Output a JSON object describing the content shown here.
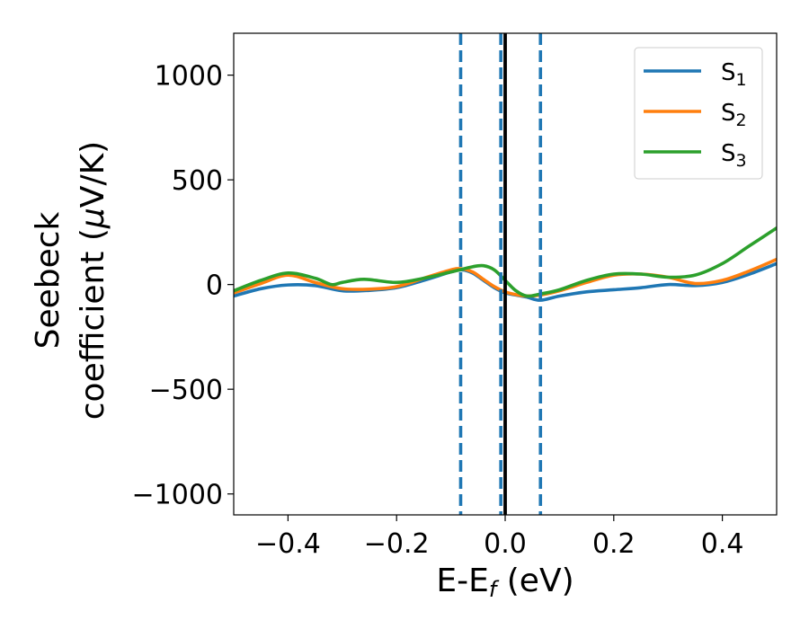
{
  "chart_data": {
    "type": "line",
    "xlabel_main": "E-E",
    "xlabel_sub": "f",
    "xlabel_unit": " (eV)",
    "ylabel_line1": "Seebeck",
    "ylabel_line2_text": "coefficient  (",
    "ylabel_line2_mu": "μ",
    "ylabel_line2_unit": "V/K)",
    "xlim": [
      -0.5,
      0.5
    ],
    "ylim": [
      -1100,
      1200
    ],
    "xticks": [
      -0.4,
      -0.2,
      0.0,
      0.2,
      0.4
    ],
    "xtick_labels": [
      "−0.4",
      "−0.2",
      "0.0",
      "0.2",
      "0.4"
    ],
    "yticks": [
      -1000,
      -500,
      0,
      500,
      1000
    ],
    "ytick_labels": [
      "−1000",
      "−500",
      "0",
      "500",
      "1000"
    ],
    "legend_position": "top-right",
    "series": [
      {
        "name_main": "S",
        "name_sub": "1",
        "color": "#1f77b4",
        "x": [
          -0.5,
          -0.45,
          -0.4,
          -0.35,
          -0.3,
          -0.25,
          -0.2,
          -0.15,
          -0.1,
          -0.08,
          -0.06,
          -0.04,
          -0.02,
          0.0,
          0.02,
          0.04,
          0.065,
          0.1,
          0.15,
          0.2,
          0.25,
          0.3,
          0.35,
          0.4,
          0.45,
          0.5
        ],
        "y": [
          -55,
          -20,
          -2,
          -5,
          -30,
          -28,
          -15,
          20,
          60,
          70,
          55,
          20,
          -15,
          -40,
          -50,
          -60,
          -75,
          -55,
          -35,
          -25,
          -15,
          0,
          -5,
          10,
          50,
          100
        ]
      },
      {
        "name_main": "S",
        "name_sub": "2",
        "color": "#ff7f0e",
        "x": [
          -0.5,
          -0.45,
          -0.4,
          -0.35,
          -0.3,
          -0.25,
          -0.2,
          -0.15,
          -0.1,
          -0.08,
          -0.06,
          -0.04,
          -0.02,
          0.0,
          0.02,
          0.04,
          0.065,
          0.1,
          0.15,
          0.2,
          0.25,
          0.3,
          0.35,
          0.4,
          0.45,
          0.5
        ],
        "y": [
          -40,
          5,
          45,
          10,
          -20,
          -22,
          -10,
          30,
          70,
          75,
          60,
          25,
          -10,
          -35,
          -48,
          -55,
          -50,
          -30,
          10,
          45,
          50,
          35,
          5,
          20,
          65,
          120
        ]
      },
      {
        "name_main": "S",
        "name_sub": "3",
        "color": "#2ca02c",
        "x": [
          -0.5,
          -0.45,
          -0.4,
          -0.35,
          -0.32,
          -0.3,
          -0.26,
          -0.2,
          -0.15,
          -0.1,
          -0.06,
          -0.04,
          -0.02,
          0.0,
          0.02,
          0.04,
          0.065,
          0.1,
          0.15,
          0.2,
          0.25,
          0.3,
          0.35,
          0.4,
          0.45,
          0.5
        ],
        "y": [
          -30,
          20,
          55,
          30,
          0,
          10,
          25,
          10,
          30,
          60,
          85,
          90,
          70,
          20,
          -30,
          -55,
          -45,
          -25,
          20,
          50,
          50,
          35,
          45,
          100,
          185,
          270
        ]
      }
    ],
    "reference_lines": {
      "solid": [
        {
          "x": 0.0,
          "color": "#000000"
        }
      ],
      "dashed": [
        {
          "x": -0.082,
          "color": "#1f77b4"
        },
        {
          "x": -0.008,
          "color": "#1f77b4"
        },
        {
          "x": 0.065,
          "color": "#1f77b4"
        }
      ]
    }
  }
}
